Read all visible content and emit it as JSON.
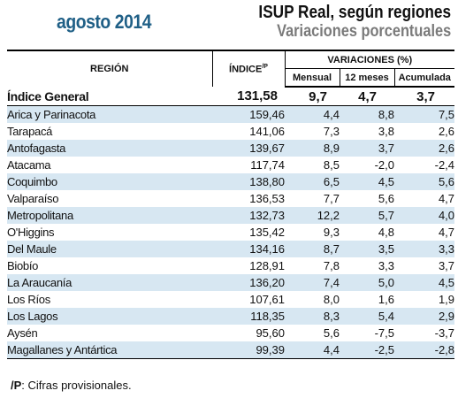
{
  "header": {
    "date_label": "agosto 2014",
    "title": "ISUP Real, según regiones",
    "subtitle": "Variaciones porcentuales"
  },
  "colors": {
    "date_title": "#1f5f86",
    "stripe": "#d7e7f2",
    "subtitle": "#7a7a7a"
  },
  "table": {
    "headers": {
      "region": "REGIÓN",
      "index": "ÍNDICE",
      "index_sup": "/P",
      "variations": "VARIACIONES (%)",
      "monthly": "Mensual",
      "twelve_months": "12 meses",
      "cumulative": "Acumulada"
    },
    "total": {
      "region": "Índice General",
      "index": "131,58",
      "monthly": "9,7",
      "twelve_months": "4,7",
      "cumulative": "3,7"
    },
    "rows": [
      {
        "region": "Arica y Parinacota",
        "index": "159,46",
        "monthly": "4,4",
        "twelve_months": "8,8",
        "cumulative": "7,5"
      },
      {
        "region": "Tarapacá",
        "index": "141,06",
        "monthly": "7,3",
        "twelve_months": "3,8",
        "cumulative": "2,6"
      },
      {
        "region": "Antofagasta",
        "index": "139,67",
        "monthly": "8,9",
        "twelve_months": "3,7",
        "cumulative": "2,6"
      },
      {
        "region": "Atacama",
        "index": "117,74",
        "monthly": "8,5",
        "twelve_months": "-2,0",
        "cumulative": "-2,4"
      },
      {
        "region": "Coquimbo",
        "index": "138,80",
        "monthly": "6,5",
        "twelve_months": "4,5",
        "cumulative": "5,6"
      },
      {
        "region": "Valparaíso",
        "index": "136,53",
        "monthly": "7,7",
        "twelve_months": "5,6",
        "cumulative": "4,7"
      },
      {
        "region": "Metropolitana",
        "index": "132,73",
        "monthly": "12,2",
        "twelve_months": "5,7",
        "cumulative": "4,0"
      },
      {
        "region": "O'Higgins",
        "index": "135,42",
        "monthly": "9,3",
        "twelve_months": "4,8",
        "cumulative": "4,7"
      },
      {
        "region": "Del Maule",
        "index": "134,16",
        "monthly": "8,7",
        "twelve_months": "3,5",
        "cumulative": "3,3"
      },
      {
        "region": "Biobío",
        "index": "128,91",
        "monthly": "7,8",
        "twelve_months": "3,3",
        "cumulative": "3,7"
      },
      {
        "region": "La Araucanía",
        "index": "136,20",
        "monthly": "7,4",
        "twelve_months": "5,0",
        "cumulative": "4,5"
      },
      {
        "region": "Los Ríos",
        "index": "107,61",
        "monthly": "8,0",
        "twelve_months": "1,6",
        "cumulative": "1,9"
      },
      {
        "region": "Los Lagos",
        "index": "118,35",
        "monthly": "8,3",
        "twelve_months": "5,4",
        "cumulative": "2,9"
      },
      {
        "region": "Aysén",
        "index": "95,60",
        "monthly": "5,6",
        "twelve_months": "-7,5",
        "cumulative": "-3,7"
      },
      {
        "region": "Magallanes y Antártica",
        "index": "99,39",
        "monthly": "4,4",
        "twelve_months": "-2,5",
        "cumulative": "-2,8"
      }
    ]
  },
  "footnote": {
    "marker": "/P",
    "text": ": Cifras provisionales."
  }
}
